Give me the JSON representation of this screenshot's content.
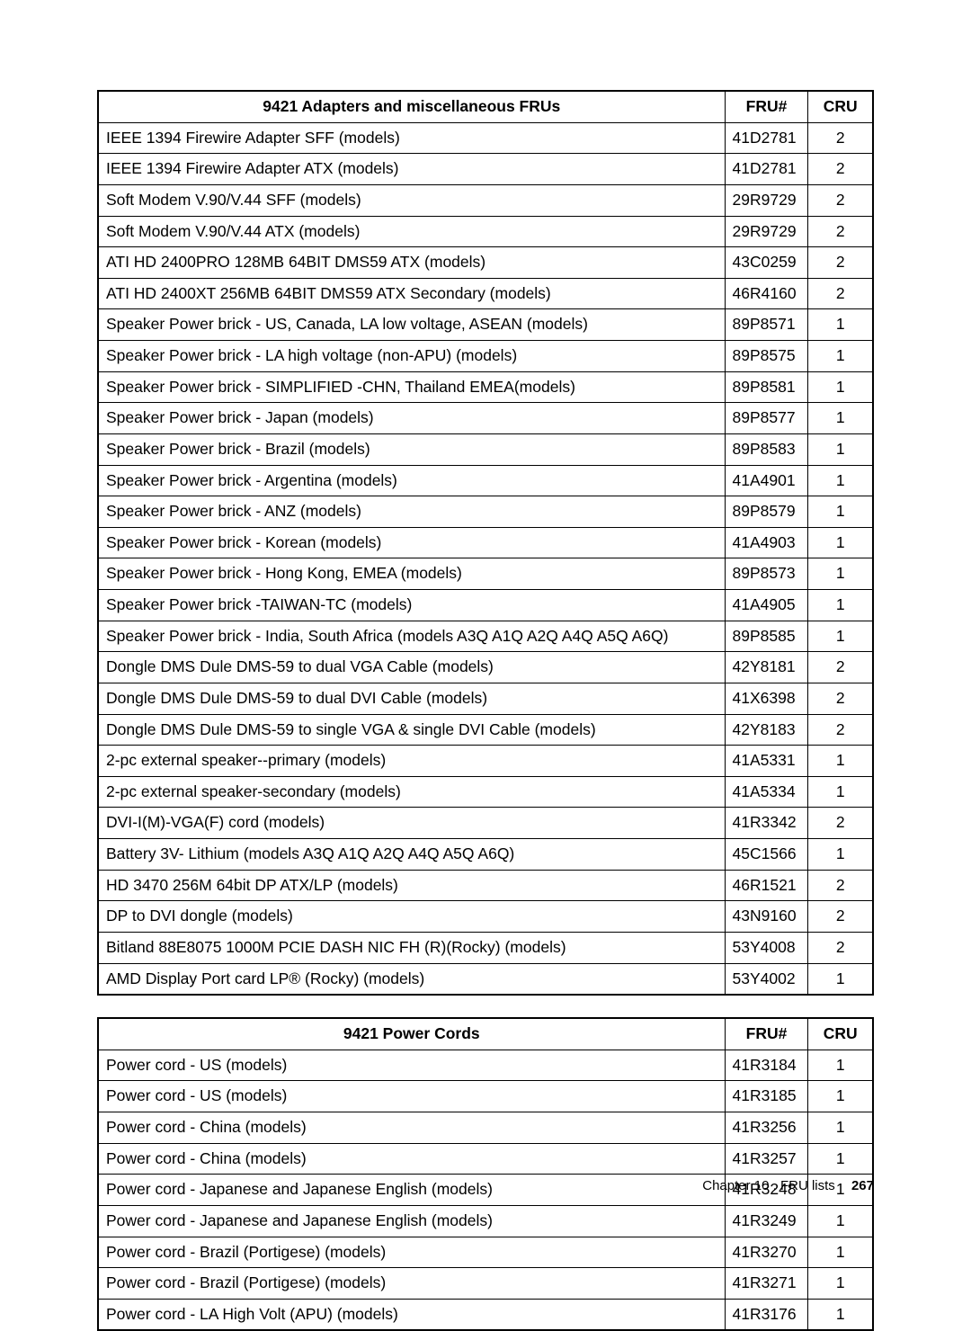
{
  "table1": {
    "headers": {
      "desc": "9421 Adapters and miscellaneous FRUs",
      "fru": "FRU#",
      "cru": "CRU"
    },
    "rows": [
      {
        "desc": "IEEE 1394 Firewire Adapter SFF (models)",
        "fru": "41D2781",
        "cru": "2"
      },
      {
        "desc": "IEEE 1394 Firewire Adapter ATX (models)",
        "fru": "41D2781",
        "cru": "2"
      },
      {
        "desc": "Soft Modem V.90/V.44 SFF (models)",
        "fru": "29R9729",
        "cru": "2"
      },
      {
        "desc": "Soft Modem V.90/V.44 ATX (models)",
        "fru": "29R9729",
        "cru": "2"
      },
      {
        "desc": "ATI HD 2400PRO 128MB 64BIT DMS59 ATX (models)",
        "fru": "43C0259",
        "cru": "2"
      },
      {
        "desc": "ATI HD 2400XT 256MB 64BIT DMS59 ATX Secondary (models)",
        "fru": "46R4160",
        "cru": "2"
      },
      {
        "desc": "Speaker Power brick - US, Canada, LA low voltage, ASEAN (models)",
        "fru": "89P8571",
        "cru": "1"
      },
      {
        "desc": "Speaker Power brick - LA high voltage (non-APU) (models)",
        "fru": "89P8575",
        "cru": "1"
      },
      {
        "desc": "Speaker Power brick - SIMPLIFIED -CHN, Thailand EMEA(models)",
        "fru": "89P8581",
        "cru": "1"
      },
      {
        "desc": "Speaker Power brick - Japan (models)",
        "fru": "89P8577",
        "cru": "1"
      },
      {
        "desc": "Speaker Power brick - Brazil (models)",
        "fru": "89P8583",
        "cru": "1"
      },
      {
        "desc": "Speaker Power brick - Argentina (models)",
        "fru": "41A4901",
        "cru": "1"
      },
      {
        "desc": "Speaker Power brick - ANZ (models)",
        "fru": "89P8579",
        "cru": "1"
      },
      {
        "desc": "Speaker Power brick - Korean (models)",
        "fru": "41A4903",
        "cru": "1"
      },
      {
        "desc": "Speaker Power brick - Hong Kong, EMEA (models)",
        "fru": "89P8573",
        "cru": "1"
      },
      {
        "desc": "Speaker Power brick -TAIWAN-TC (models)",
        "fru": "41A4905",
        "cru": "1"
      },
      {
        "desc": "Speaker Power brick - India, South Africa (models A3Q A1Q A2Q A4Q A5Q A6Q)",
        "fru": "89P8585",
        "cru": "1"
      },
      {
        "desc": "Dongle DMS Dule DMS-59 to dual VGA Cable (models)",
        "fru": "42Y8181",
        "cru": "2"
      },
      {
        "desc": "Dongle DMS Dule DMS-59 to dual DVI Cable (models)",
        "fru": "41X6398",
        "cru": "2"
      },
      {
        "desc": "Dongle DMS Dule DMS-59 to single VGA & single DVI Cable (models)",
        "fru": "42Y8183",
        "cru": "2"
      },
      {
        "desc": "2-pc external speaker--primary (models)",
        "fru": "41A5331",
        "cru": "1"
      },
      {
        "desc": "2-pc external speaker-secondary (models)",
        "fru": "41A5334",
        "cru": "1"
      },
      {
        "desc": "DVI-I(M)-VGA(F) cord (models)",
        "fru": "41R3342",
        "cru": "2"
      },
      {
        "desc": "Battery 3V- Lithium (models A3Q A1Q A2Q A4Q A5Q A6Q)",
        "fru": "45C1566",
        "cru": "1"
      },
      {
        "desc": "HD 3470 256M 64bit DP ATX/LP (models)",
        "fru": "46R1521",
        "cru": "2"
      },
      {
        "desc": "DP to DVI dongle (models)",
        "fru": "43N9160",
        "cru": "2"
      },
      {
        "desc": "Bitland 88E8075 1000M PCIE DASH NIC FH (R)(Rocky) (models)",
        "fru": "53Y4008",
        "cru": "2"
      },
      {
        "desc": "AMD Display Port card LP® (Rocky) (models)",
        "fru": "53Y4002",
        "cru": "1"
      }
    ]
  },
  "table2": {
    "headers": {
      "desc": "9421 Power Cords",
      "fru": "FRU#",
      "cru": "CRU"
    },
    "rows": [
      {
        "desc": "Power cord - US (models)",
        "fru": "41R3184",
        "cru": "1"
      },
      {
        "desc": "Power cord - US (models)",
        "fru": "41R3185",
        "cru": "1"
      },
      {
        "desc": "Power cord - China (models)",
        "fru": "41R3256",
        "cru": "1"
      },
      {
        "desc": "Power cord - China (models)",
        "fru": "41R3257",
        "cru": "1"
      },
      {
        "desc": "Power cord - Japanese and Japanese English (models)",
        "fru": "41R3248",
        "cru": "1"
      },
      {
        "desc": "Power cord - Japanese and Japanese English (models)",
        "fru": "41R3249",
        "cru": "1"
      },
      {
        "desc": "Power cord - Brazil (Portigese) (models)",
        "fru": "41R3270",
        "cru": "1"
      },
      {
        "desc": "Power cord - Brazil (Portigese) (models)",
        "fru": "41R3271",
        "cru": "1"
      },
      {
        "desc": "Power cord - LA High Volt (APU) (models)",
        "fru": "41R3176",
        "cru": "1"
      }
    ]
  },
  "footer": {
    "chapter_label": "Chapter 10 . FRU lists",
    "page_number": "267"
  }
}
